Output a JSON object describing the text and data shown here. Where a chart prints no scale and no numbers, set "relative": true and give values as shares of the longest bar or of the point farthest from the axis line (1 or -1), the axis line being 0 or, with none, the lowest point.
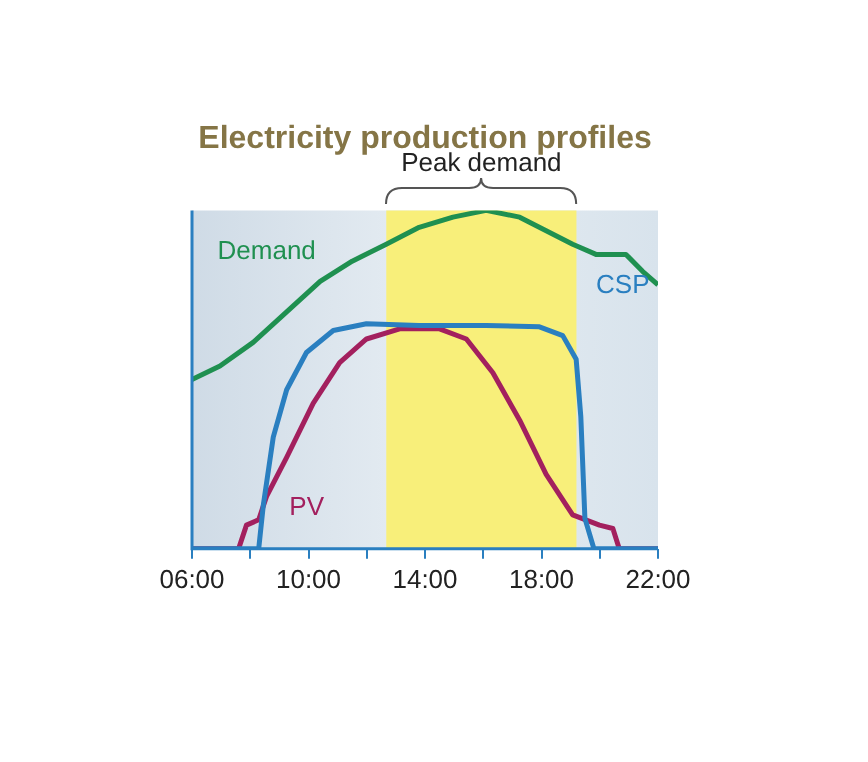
{
  "chart_data": {
    "type": "line",
    "title": "Electricity production profiles",
    "relative": true,
    "legend": false,
    "grid": false,
    "tick_labels": "x",
    "marker": "none",
    "line_style": "solid",
    "xlim": [
      6,
      22
    ],
    "xticks": [
      {
        "value": 6,
        "label": "06:00"
      },
      {
        "value": 8,
        "label": null
      },
      {
        "value": 10,
        "label": "10:00"
      },
      {
        "value": 12,
        "label": null
      },
      {
        "value": 14,
        "label": "14:00"
      },
      {
        "value": 16,
        "label": null
      },
      {
        "value": 18,
        "label": "18:00"
      },
      {
        "value": 20,
        "label": null
      },
      {
        "value": 22,
        "label": "22:00"
      }
    ],
    "bands": [
      {
        "axis": "x",
        "from": 12.67,
        "to": 19.2,
        "label": "Peak demand",
        "color": "#f8ef7a"
      }
    ],
    "series": [
      {
        "name": "Demand",
        "color": "#1f9050",
        "x": [
          6,
          6.96,
          8.1,
          9.25,
          10.4,
          11.5,
          12.67,
          13.8,
          14.96,
          16.1,
          17.25,
          18.16,
          19.07,
          19.87,
          20.9,
          21.47,
          22
        ],
        "values": [
          0.5,
          0.54,
          0.61,
          0.7,
          0.79,
          0.85,
          0.9,
          0.95,
          0.98,
          1,
          0.98,
          0.94,
          0.9,
          0.87,
          0.87,
          0.82,
          0.78
        ]
      },
      {
        "name": "CSP",
        "color": "#2a7fc0",
        "x": [
          6,
          8.29,
          8.45,
          8.79,
          9.25,
          9.93,
          10.85,
          11.99,
          13.8,
          16.1,
          17.93,
          18.73,
          19.19,
          19.35,
          19.49,
          19.8,
          22
        ],
        "values": [
          0,
          0,
          0.13,
          0.33,
          0.47,
          0.58,
          0.645,
          0.665,
          0.66,
          0.66,
          0.656,
          0.63,
          0.56,
          0.39,
          0.09,
          0,
          0
        ]
      },
      {
        "name": "PV",
        "color": "#a3205e",
        "x": [
          6,
          7.6,
          7.87,
          8.29,
          8.56,
          9.25,
          10.16,
          11.07,
          11.99,
          13.13,
          14.5,
          15.42,
          16.33,
          17.25,
          18.16,
          19.07,
          19.99,
          20.45,
          20.67,
          22
        ],
        "values": [
          0,
          0,
          0.07,
          0.086,
          0.155,
          0.27,
          0.43,
          0.55,
          0.62,
          0.65,
          0.65,
          0.62,
          0.52,
          0.38,
          0.22,
          0.1,
          0.07,
          0.06,
          0,
          0
        ]
      }
    ]
  }
}
